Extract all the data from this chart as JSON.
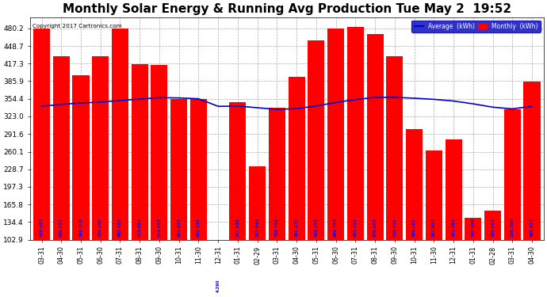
{
  "title": "Monthly Solar Energy & Running Avg Production Tue May 2  19:52",
  "copyright": "Copyright 2017 Cartronics.com",
  "categories": [
    "03-31",
    "04-30",
    "05-31",
    "06-30",
    "07-31",
    "08-31",
    "09-30",
    "10-31",
    "11-30",
    "12-31",
    "01-31",
    "02-29",
    "03-31",
    "04-30",
    "05-31",
    "06-30",
    "07-31",
    "08-31",
    "09-30",
    "10-31",
    "11-30",
    "12-31",
    "01-31",
    "02-28",
    "03-31",
    "04-30"
  ],
  "monthly_values": [
    480.165,
    430.267,
    396.208,
    430.04,
    480.425,
    415.884,
    414.467,
    354.654,
    353.535,
    4.29,
    347.835,
    233.64,
    338.35,
    393.17,
    458.151,
    480.388,
    483.322,
    470.289,
    430.42,
    300.269,
    261.61,
    282.062,
    142.026,
    155.067,
    336.389,
    385.613
  ],
  "average_values": [
    341.0,
    344.5,
    347.0,
    348.5,
    351.5,
    354.0,
    356.5,
    356.0,
    354.5,
    341.0,
    341.5,
    338.5,
    335.5,
    337.0,
    341.5,
    348.0,
    353.0,
    357.0,
    357.0,
    355.5,
    353.5,
    350.5,
    345.5,
    339.5,
    336.5,
    341.0
  ],
  "bar_color": "#ff0000",
  "line_color": "#0000cc",
  "background_color": "#ffffff",
  "plot_background": "#ffffff",
  "grid_color": "#aaaaaa",
  "yticks": [
    102.9,
    134.4,
    165.8,
    197.3,
    228.7,
    260.1,
    291.6,
    323.0,
    354.4,
    385.9,
    417.3,
    448.7,
    480.2
  ],
  "ylim_min": 102.9,
  "ylim_max": 500.0,
  "title_fontsize": 11,
  "bar_label_color": "#0000ff",
  "legend_avg_color": "#0000cc",
  "legend_monthly_color": "#ff0000"
}
